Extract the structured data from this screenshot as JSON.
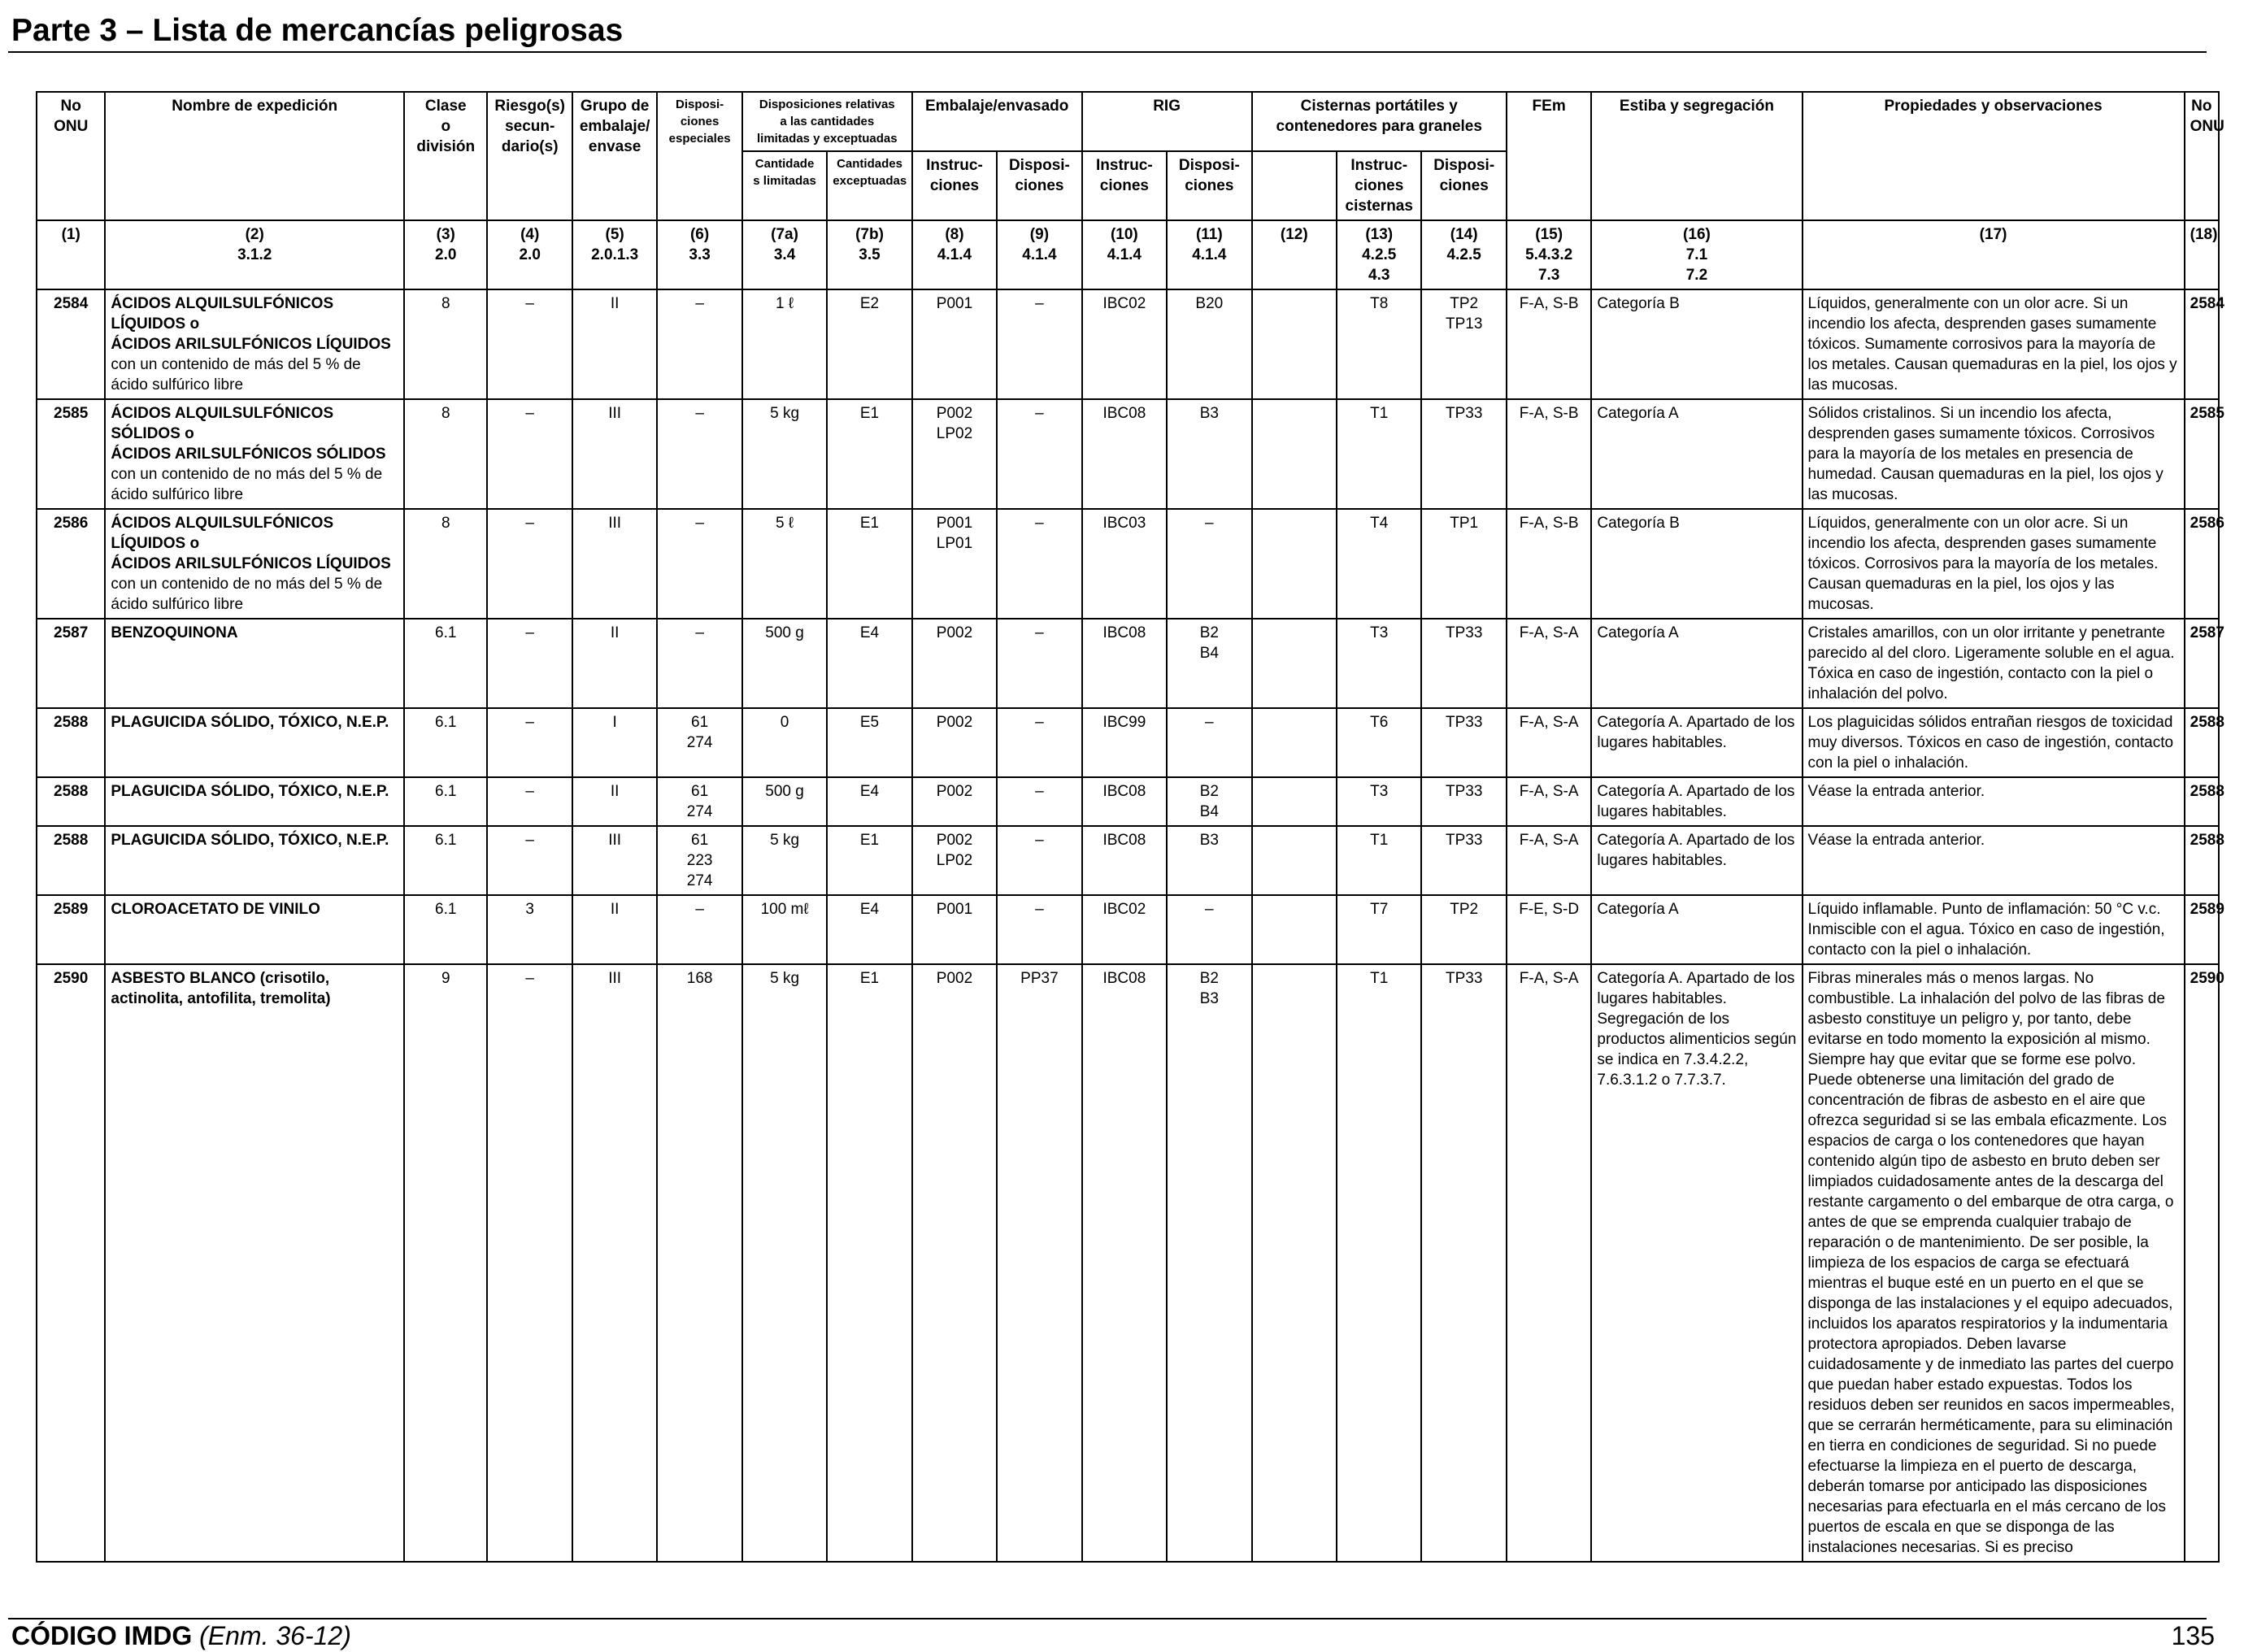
{
  "page": {
    "title": "Parte 3 – Lista de mercancías peligrosas",
    "footer_code": "CÓDIGO IMDG",
    "footer_amendment": "(Enm. 36-12)",
    "page_number": "135"
  },
  "header": {
    "no_onu": "No\nONU",
    "nombre": "Nombre de expedición",
    "clase": "Clase\no\ndivisión",
    "riesgo": "Riesgo(s)\nsecun-\ndario(s)",
    "grupo": "Grupo de\nembalaje/\nenvase",
    "disposiciones_especiales": "Disposi-\nciones\nespeciales",
    "cantidades": "Disposiciones relativas\na las cantidades\nlimitadas y exceptuadas",
    "cant_limitadas": "Cantidade\ns limitadas",
    "cant_exceptuadas": "Cantidades\nexceptuadas",
    "embalaje": "Embalaje/envasado",
    "emb_instrucciones": "Instruc-\nciones",
    "emb_disposiciones": "Disposi-\nciones",
    "rig": "RIG",
    "rig_instrucciones": "Instruc-\nciones",
    "rig_disposiciones": "Disposi-\nciones",
    "cisternas": "Cisternas portátiles y\ncontenedores para graneles",
    "cis_instrucciones": "Instruc-\nciones\ncisternas",
    "cis_disposiciones": "Disposi-\nciones",
    "fem": "FEm",
    "estiba": "Estiba y segregación",
    "propiedades": "Propiedades y observaciones",
    "no_onu_right": "No\nONU"
  },
  "column_refs": [
    "(1)",
    "(2)\n3.1.2",
    "(3)\n2.0",
    "(4)\n2.0",
    "(5)\n2.0.1.3",
    "(6)\n3.3",
    "(7a)\n3.4",
    "(7b)\n3.5",
    "(8)\n4.1.4",
    "(9)\n4.1.4",
    "(10)\n4.1.4",
    "(11)\n4.1.4",
    "(12)",
    "(13)\n4.2.5\n4.3",
    "(14)\n4.2.5",
    "(15)\n5.4.3.2\n7.3",
    "(16)\n7.1\n7.2",
    "(17)",
    "(18)"
  ],
  "rows": [
    {
      "onu": "2584",
      "name": "ÁCIDOS ALQUILSULFÓNICOS LÍQUIDOS o\nÁCIDOS ARILSULFÓNICOS LÍQUIDOS",
      "name_note": "con un contenido de más del 5 % de ácido sulfúrico libre",
      "clase": "8",
      "riesgo": "–",
      "grupo": "II",
      "disp_esp": "–",
      "cant_lim": "1 ℓ",
      "cant_exc": "E2",
      "emb_instr": "P001",
      "emb_disp": "–",
      "rig_instr": "IBC02",
      "rig_disp": "B20",
      "col12": "",
      "cis_instr": "T8",
      "cis_disp": "TP2\nTP13",
      "fem": "F-A, S-B",
      "estiba": "Categoría B",
      "obs": "Líquidos, generalmente con un olor acre. Si un incendio los afecta, desprenden gases sumamente tóxicos. Sumamente corrosivos para la mayoría de los metales. Causan quemaduras en la piel, los ojos y las mucosas.",
      "onu_right": "2584"
    },
    {
      "onu": "2585",
      "name": "ÁCIDOS ALQUILSULFÓNICOS SÓLIDOS o\nÁCIDOS ARILSULFÓNICOS SÓLIDOS",
      "name_note": "con un contenido de no más del 5 % de ácido sulfúrico libre",
      "clase": "8",
      "riesgo": "–",
      "grupo": "III",
      "disp_esp": "–",
      "cant_lim": "5 kg",
      "cant_exc": "E1",
      "emb_instr": "P002\nLP02",
      "emb_disp": "–",
      "rig_instr": "IBC08",
      "rig_disp": "B3",
      "col12": "",
      "cis_instr": "T1",
      "cis_disp": "TP33",
      "fem": "F-A, S-B",
      "estiba": "Categoría A",
      "obs": "Sólidos cristalinos. Si un incendio los afecta, desprenden gases sumamente tóxicos. Corrosivos para la mayoría de los metales en presencia de humedad. Causan quemaduras en la piel, los ojos y las mucosas.",
      "onu_right": "2585"
    },
    {
      "onu": "2586",
      "name": "ÁCIDOS ALQUILSULFÓNICOS LÍQUIDOS o\nÁCIDOS ARILSULFÓNICOS LÍQUIDOS",
      "name_note": "con un contenido de no más del 5 % de ácido sulfúrico libre",
      "clase": "8",
      "riesgo": "–",
      "grupo": "III",
      "disp_esp": "–",
      "cant_lim": "5 ℓ",
      "cant_exc": "E1",
      "emb_instr": "P001\nLP01",
      "emb_disp": "–",
      "rig_instr": "IBC03",
      "rig_disp": "–",
      "col12": "",
      "cis_instr": "T4",
      "cis_disp": "TP1",
      "fem": "F-A, S-B",
      "estiba": "Categoría B",
      "obs": "Líquidos, generalmente con un olor acre. Si un incendio los afecta, desprenden gases sumamente tóxicos. Corrosivos para la mayoría de los metales. Causan quemaduras en la piel, los ojos y las mucosas.",
      "onu_right": "2586"
    },
    {
      "onu": "2587",
      "name": "BENZOQUINONA",
      "name_note": "",
      "clase": "6.1",
      "riesgo": "–",
      "grupo": "II",
      "disp_esp": "–",
      "cant_lim": "500 g",
      "cant_exc": "E4",
      "emb_instr": "P002",
      "emb_disp": "–",
      "rig_instr": "IBC08",
      "rig_disp": "B2\nB4",
      "col12": "",
      "cis_instr": "T3",
      "cis_disp": "TP33",
      "fem": "F-A, S-A",
      "estiba": "Categoría A",
      "obs": "Cristales amarillos, con un olor irritante y penetrante parecido al del cloro. Ligeramente soluble en el agua. Tóxica en caso de ingestión, contacto con la piel o inhalación del polvo.",
      "onu_right": "2587"
    },
    {
      "onu": "2588",
      "name": "PLAGUICIDA SÓLIDO, TÓXICO, N.E.P.",
      "name_note": "",
      "clase": "6.1",
      "riesgo": "–",
      "grupo": "I",
      "disp_esp": "61\n274",
      "cant_lim": "0",
      "cant_exc": "E5",
      "emb_instr": "P002",
      "emb_disp": "–",
      "rig_instr": "IBC99",
      "rig_disp": "–",
      "col12": "",
      "cis_instr": "T6",
      "cis_disp": "TP33",
      "fem": "F-A, S-A",
      "estiba": "Categoría A. Apartado de los lugares habitables.",
      "obs": "Los plaguicidas sólidos entrañan riesgos de toxicidad muy diversos. Tóxicos en caso de ingestión, contacto con la piel o inhalación.",
      "onu_right": "2588"
    },
    {
      "onu": "2588",
      "name": "PLAGUICIDA SÓLIDO, TÓXICO, N.E.P.",
      "name_note": "",
      "clase": "6.1",
      "riesgo": "–",
      "grupo": "II",
      "disp_esp": "61\n274",
      "cant_lim": "500 g",
      "cant_exc": "E4",
      "emb_instr": "P002",
      "emb_disp": "–",
      "rig_instr": "IBC08",
      "rig_disp": "B2\nB4",
      "col12": "",
      "cis_instr": "T3",
      "cis_disp": "TP33",
      "fem": "F-A, S-A",
      "estiba": "Categoría A. Apartado de los lugares habitables.",
      "obs": "Véase la entrada anterior.",
      "onu_right": "2588"
    },
    {
      "onu": "2588",
      "name": "PLAGUICIDA SÓLIDO, TÓXICO, N.E.P.",
      "name_note": "",
      "clase": "6.1",
      "riesgo": "–",
      "grupo": "III",
      "disp_esp": "61\n223\n274",
      "cant_lim": "5 kg",
      "cant_exc": "E1",
      "emb_instr": "P002\nLP02",
      "emb_disp": "–",
      "rig_instr": "IBC08",
      "rig_disp": "B3",
      "col12": "",
      "cis_instr": "T1",
      "cis_disp": "TP33",
      "fem": "F-A, S-A",
      "estiba": "Categoría A. Apartado de los lugares habitables.",
      "obs": "Véase la entrada anterior.",
      "onu_right": "2588"
    },
    {
      "onu": "2589",
      "name": "CLOROACETATO DE VINILO",
      "name_note": "",
      "clase": "6.1",
      "riesgo": "3",
      "grupo": "II",
      "disp_esp": "–",
      "cant_lim": "100 mℓ",
      "cant_exc": "E4",
      "emb_instr": "P001",
      "emb_disp": "–",
      "rig_instr": "IBC02",
      "rig_disp": "–",
      "col12": "",
      "cis_instr": "T7",
      "cis_disp": "TP2",
      "fem": "F-E, S-D",
      "estiba": "Categoría A",
      "obs": "Líquido inflamable. Punto de inflamación: 50 °C v.c. Inmiscible con el agua. Tóxico en caso de ingestión, contacto con la piel o inhalación.",
      "onu_right": "2589"
    },
    {
      "onu": "2590",
      "name": "ASBESTO BLANCO (crisotilo, actinolita, antofilita, tremolita)",
      "name_note": "",
      "clase": "9",
      "riesgo": "–",
      "grupo": "III",
      "disp_esp": "168",
      "cant_lim": "5 kg",
      "cant_exc": "E1",
      "emb_instr": "P002",
      "emb_disp": "PP37",
      "rig_instr": "IBC08",
      "rig_disp": "B2\nB3",
      "col12": "",
      "cis_instr": "T1",
      "cis_disp": "TP33",
      "fem": "F-A, S-A",
      "estiba": "Categoría A. Apartado de los lugares habitables. Segregación de los productos alimenticios según se indica en 7.3.4.2.2, 7.6.3.1.2 o 7.7.3.7.",
      "obs": "Fibras minerales más o menos largas. No combustible. La inhalación del polvo de las fibras de asbesto constituye un peligro y, por tanto, debe evitarse en todo momento la exposición al mismo. Siempre hay que evitar que se forme ese polvo. Puede obtenerse una limitación del grado de concentración de fibras de asbesto en el aire que ofrezca seguridad si se las embala eficazmente. Los espacios de carga o los contenedores que hayan contenido algún tipo de asbesto en bruto deben ser limpiados cuidadosamente antes de la descarga del restante cargamento o del embarque de otra carga, o antes de que se emprenda cualquier trabajo de reparación o de mantenimiento. De ser posible, la limpieza de los espacios de carga se efectuará mientras el buque esté en un puerto en el que se disponga de las instalaciones y el equipo adecuados, incluidos los aparatos respiratorios y la indumentaria protectora apropiados. Deben lavarse cuidadosamente y de inmediato las partes del cuerpo que puedan haber estado expuestas. Todos los residuos deben ser reunidos en sacos impermeables, que se cerrarán herméticamente, para su eliminación en tierra en condiciones de seguridad. Si no puede efectuarse la limpieza en el puerto de descarga, deberán tomarse por anticipado las disposiciones necesarias para efectuarla en el más cercano de los puertos de escala en que se disponga de las instalaciones necesarias. Si es preciso",
      "onu_right": "2590"
    }
  ]
}
